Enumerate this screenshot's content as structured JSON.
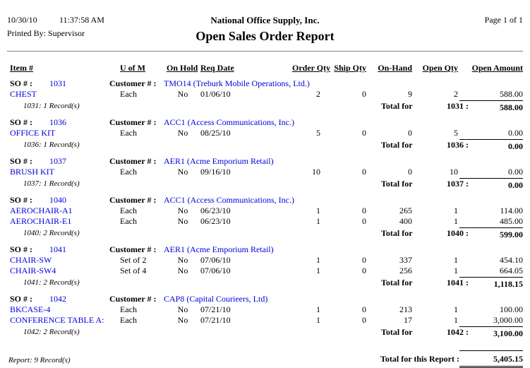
{
  "header": {
    "date": "10/30/10",
    "time": "11:37:58 AM",
    "printed_by": "Printed By: Supervisor",
    "company": "National Office Supply, Inc.",
    "title": "Open Sales Order Report",
    "page": "Page 1 of 1"
  },
  "labels": {
    "so": "SO # :",
    "customer": "Customer # :",
    "total_for": "Total for"
  },
  "columns": [
    "Item #",
    "U of M",
    "On Hold",
    "Req Date",
    "Order Qty",
    "Ship Qty",
    "On-Hand",
    "Open Qty",
    "Open Amount"
  ],
  "groups": [
    {
      "so": "1031",
      "customer": "TMO14 (Treburk Mobile Operations, Ltd.)",
      "rows": [
        {
          "item": "CHEST",
          "uofm": "Each",
          "on_hold": "No",
          "req_date": "01/06/10",
          "order_qty": "2",
          "ship_qty": "0",
          "on_hand": "9",
          "open_qty": "2",
          "open_amount": "588.00"
        }
      ],
      "record_note": "1031: 1 Record(s)",
      "total_so": "1031 :",
      "total_amount": "588.00"
    },
    {
      "so": "1036",
      "customer": "ACC1 (Access Communications, Inc.)",
      "rows": [
        {
          "item": "OFFICE KIT",
          "uofm": "Each",
          "on_hold": "No",
          "req_date": "08/25/10",
          "order_qty": "5",
          "ship_qty": "0",
          "on_hand": "0",
          "open_qty": "5",
          "open_amount": "0.00"
        }
      ],
      "record_note": "1036: 1 Record(s)",
      "total_so": "1036 :",
      "total_amount": "0.00"
    },
    {
      "so": "1037",
      "customer": "AER1 (Acme Emporium Retail)",
      "rows": [
        {
          "item": "BRUSH KIT",
          "uofm": "Each",
          "on_hold": "No",
          "req_date": "09/16/10",
          "order_qty": "10",
          "ship_qty": "0",
          "on_hand": "0",
          "open_qty": "10",
          "open_amount": "0.00"
        }
      ],
      "record_note": "1037: 1 Record(s)",
      "total_so": "1037 :",
      "total_amount": "0.00"
    },
    {
      "so": "1040",
      "customer": "ACC1 (Access Communications, Inc.)",
      "rows": [
        {
          "item": "AEROCHAIR-A1",
          "uofm": "Each",
          "on_hold": "No",
          "req_date": "06/23/10",
          "order_qty": "1",
          "ship_qty": "0",
          "on_hand": "265",
          "open_qty": "1",
          "open_amount": "114.00"
        },
        {
          "item": "AEROCHAIR-E1",
          "uofm": "Each",
          "on_hold": "No",
          "req_date": "06/23/10",
          "order_qty": "1",
          "ship_qty": "0",
          "on_hand": "400",
          "open_qty": "1",
          "open_amount": "485.00"
        }
      ],
      "record_note": "1040: 2 Record(s)",
      "total_so": "1040 :",
      "total_amount": "599.00"
    },
    {
      "so": "1041",
      "customer": "AER1 (Acme Emporium Retail)",
      "rows": [
        {
          "item": "CHAIR-SW",
          "uofm": "Set of 2",
          "on_hold": "No",
          "req_date": "07/06/10",
          "order_qty": "1",
          "ship_qty": "0",
          "on_hand": "337",
          "open_qty": "1",
          "open_amount": "454.10"
        },
        {
          "item": "CHAIR-SW4",
          "uofm": "Set of 4",
          "on_hold": "No",
          "req_date": "07/06/10",
          "order_qty": "1",
          "ship_qty": "0",
          "on_hand": "256",
          "open_qty": "1",
          "open_amount": "664.05"
        }
      ],
      "record_note": "1041: 2 Record(s)",
      "total_so": "1041 :",
      "total_amount": "1,118.15"
    },
    {
      "so": "1042",
      "customer": "CAP8 (Capital Courieers, Ltd)",
      "rows": [
        {
          "item": "BKCASE-4",
          "uofm": "Each",
          "on_hold": "No",
          "req_date": "07/21/10",
          "order_qty": "1",
          "ship_qty": "0",
          "on_hand": "213",
          "open_qty": "1",
          "open_amount": "100.00"
        },
        {
          "item": "CONFERENCE TABLE A:",
          "uofm": "Each",
          "on_hold": "No",
          "req_date": "07/21/10",
          "order_qty": "1",
          "ship_qty": "0",
          "on_hand": "17",
          "open_qty": "1",
          "open_amount": "3,000.00"
        }
      ],
      "record_note": "1042: 2 Record(s)",
      "total_so": "1042 :",
      "total_amount": "3,100.00"
    }
  ],
  "footer": {
    "record_note": "Report: 9 Record(s)",
    "total_label": "Total for this Report :",
    "total_amount": "5,405.15"
  },
  "colors": {
    "link_blue": "#0000dd",
    "text": "#000000",
    "rule": "#808080"
  }
}
